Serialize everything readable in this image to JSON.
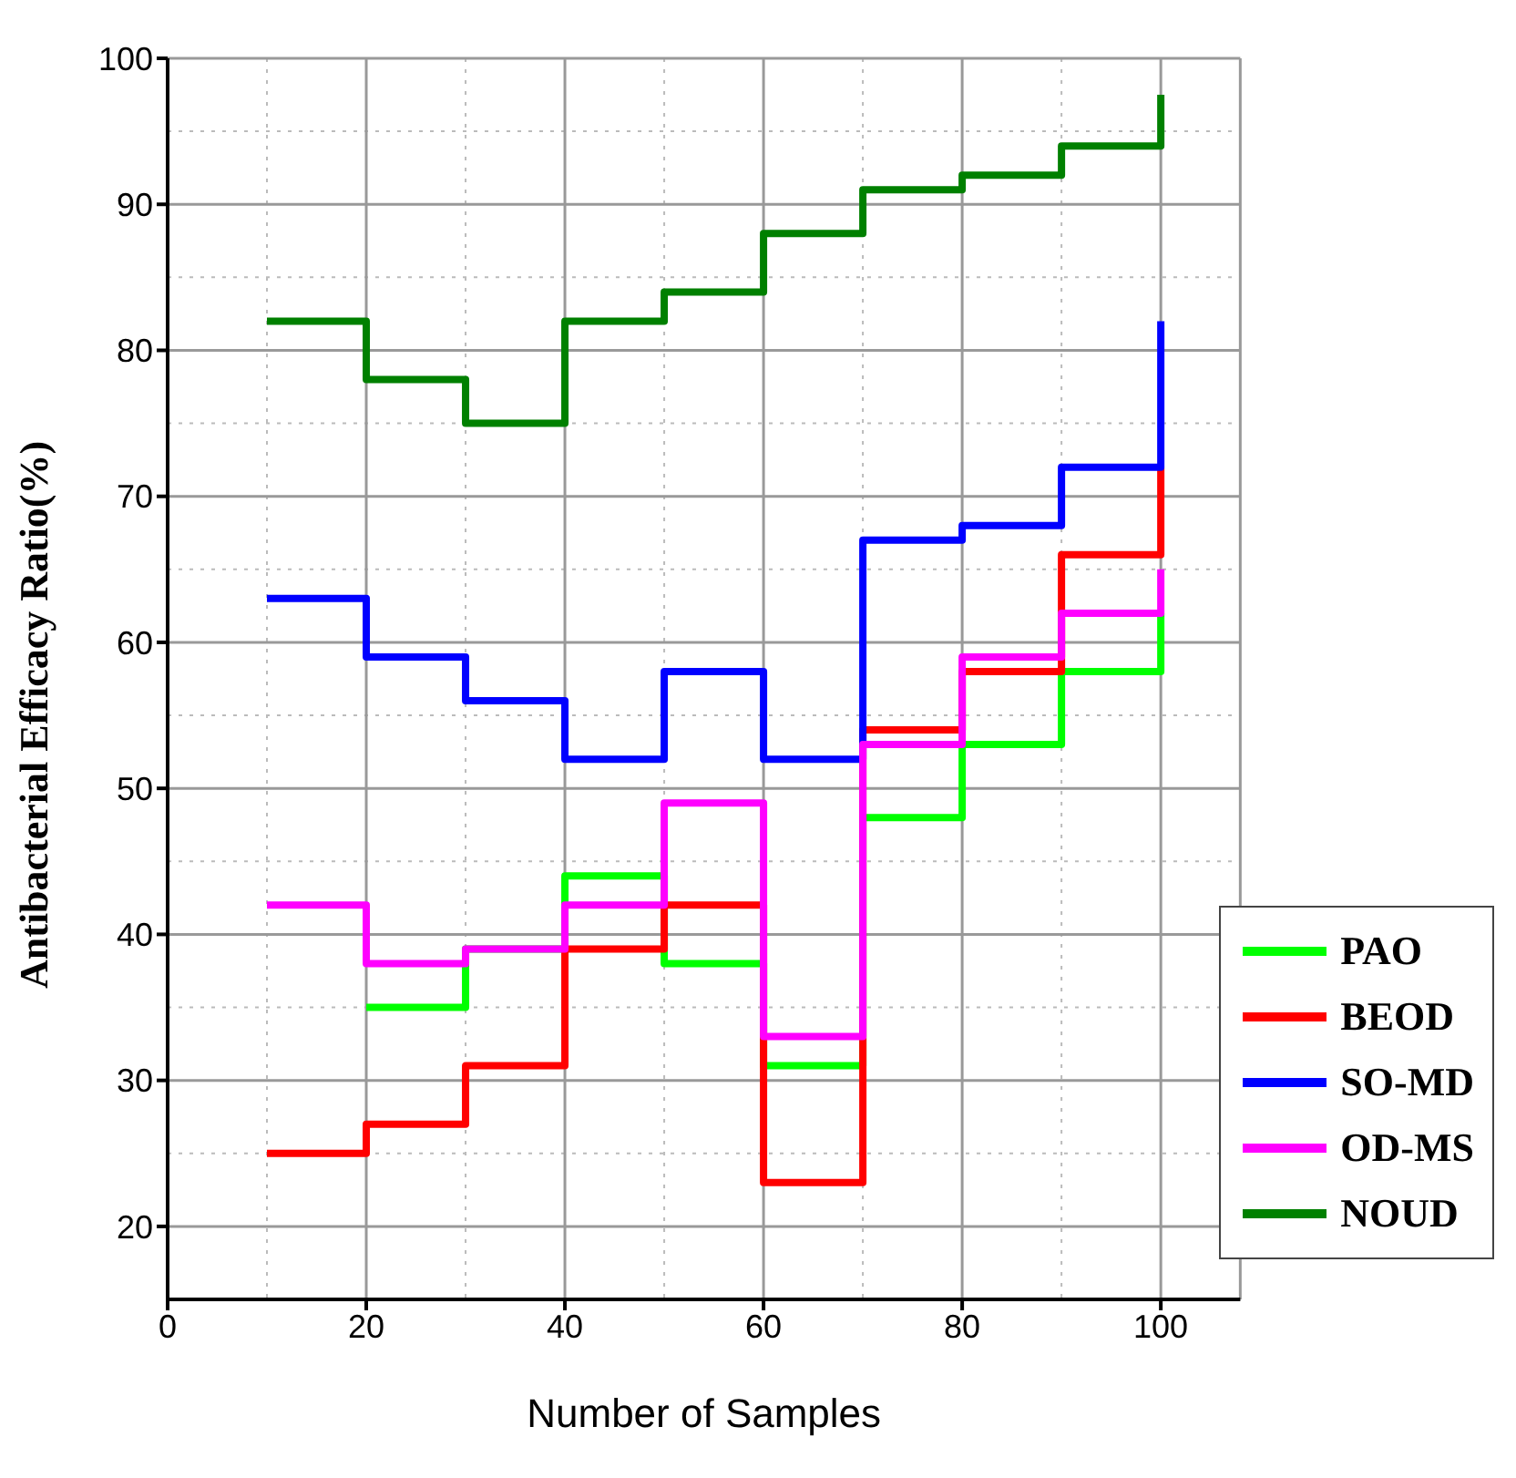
{
  "chart_data": {
    "type": "step",
    "xlabel": "Number of Samples",
    "ylabel": "Antibacterial Efficacy Ratio(%)",
    "x": [
      10,
      20,
      30,
      40,
      50,
      60,
      70,
      80,
      90,
      100
    ],
    "xlim": [
      0,
      108
    ],
    "xticks": [
      0,
      20,
      40,
      60,
      80,
      100
    ],
    "ylim": [
      15,
      100
    ],
    "yticks": [
      20,
      30,
      40,
      50,
      60,
      70,
      80,
      90,
      100
    ],
    "grid": true,
    "legend": "bottom right",
    "marker": "none",
    "line_style": "solid",
    "series": [
      {
        "name": "PAO",
        "color": "#00ff00",
        "values": [
          null,
          35,
          39,
          44,
          38,
          31,
          48,
          53,
          58,
          62
        ]
      },
      {
        "name": "BEOD",
        "color": "#ff0000",
        "values": [
          25,
          27,
          31,
          39,
          42,
          23,
          54,
          58,
          66,
          72
        ]
      },
      {
        "name": "SO-MD",
        "color": "#0000ff",
        "values": [
          63,
          59,
          56,
          52,
          58,
          52,
          67,
          68,
          72,
          82
        ]
      },
      {
        "name": "OD-MS",
        "color": "#ff00ff",
        "values": [
          42,
          38,
          39,
          42,
          49,
          33,
          53,
          59,
          62,
          65
        ]
      },
      {
        "name": "NOUD",
        "color": "#008000",
        "values": [
          82,
          78,
          75,
          82,
          84,
          88,
          91,
          92,
          94,
          97.5
        ]
      }
    ]
  }
}
